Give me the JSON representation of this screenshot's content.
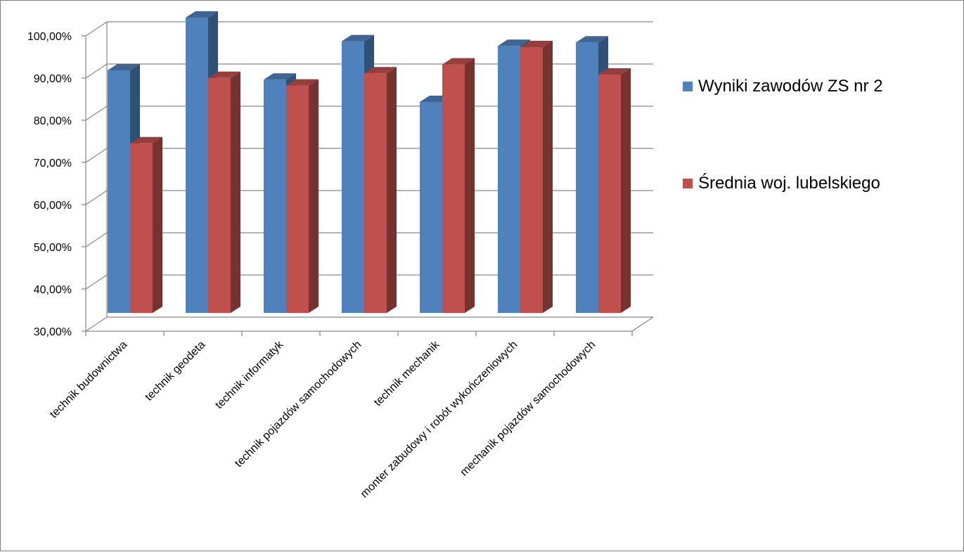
{
  "chart_data": {
    "type": "bar",
    "style": "3d-clustered-column",
    "categories": [
      "technik budownictwa",
      "technik geodeta",
      "technik informatyk",
      "technik pojazdów samochodowych",
      "technik mechanik",
      "monter zabudowy i robót wykończeniowych",
      "mechanik pojazdów samochodowych"
    ],
    "series": [
      {
        "name": "Wyniki zawodów ZS nr 2",
        "color": "#4f81bd",
        "values": [
          87.5,
          100.0,
          85.3,
          94.4,
          80.0,
          93.3,
          94.1
        ]
      },
      {
        "name": "Średnia woj. lubelskiego",
        "color": "#c0504d",
        "values": [
          70.2,
          85.7,
          83.9,
          86.8,
          88.9,
          93.0,
          86.5
        ]
      }
    ],
    "ylim": [
      30,
      100
    ],
    "yticks": [
      "30,00%",
      "40,00%",
      "50,00%",
      "60,00%",
      "70,00%",
      "80,00%",
      "90,00%",
      "100,00%"
    ],
    "grid": true,
    "legend_position": "right"
  }
}
